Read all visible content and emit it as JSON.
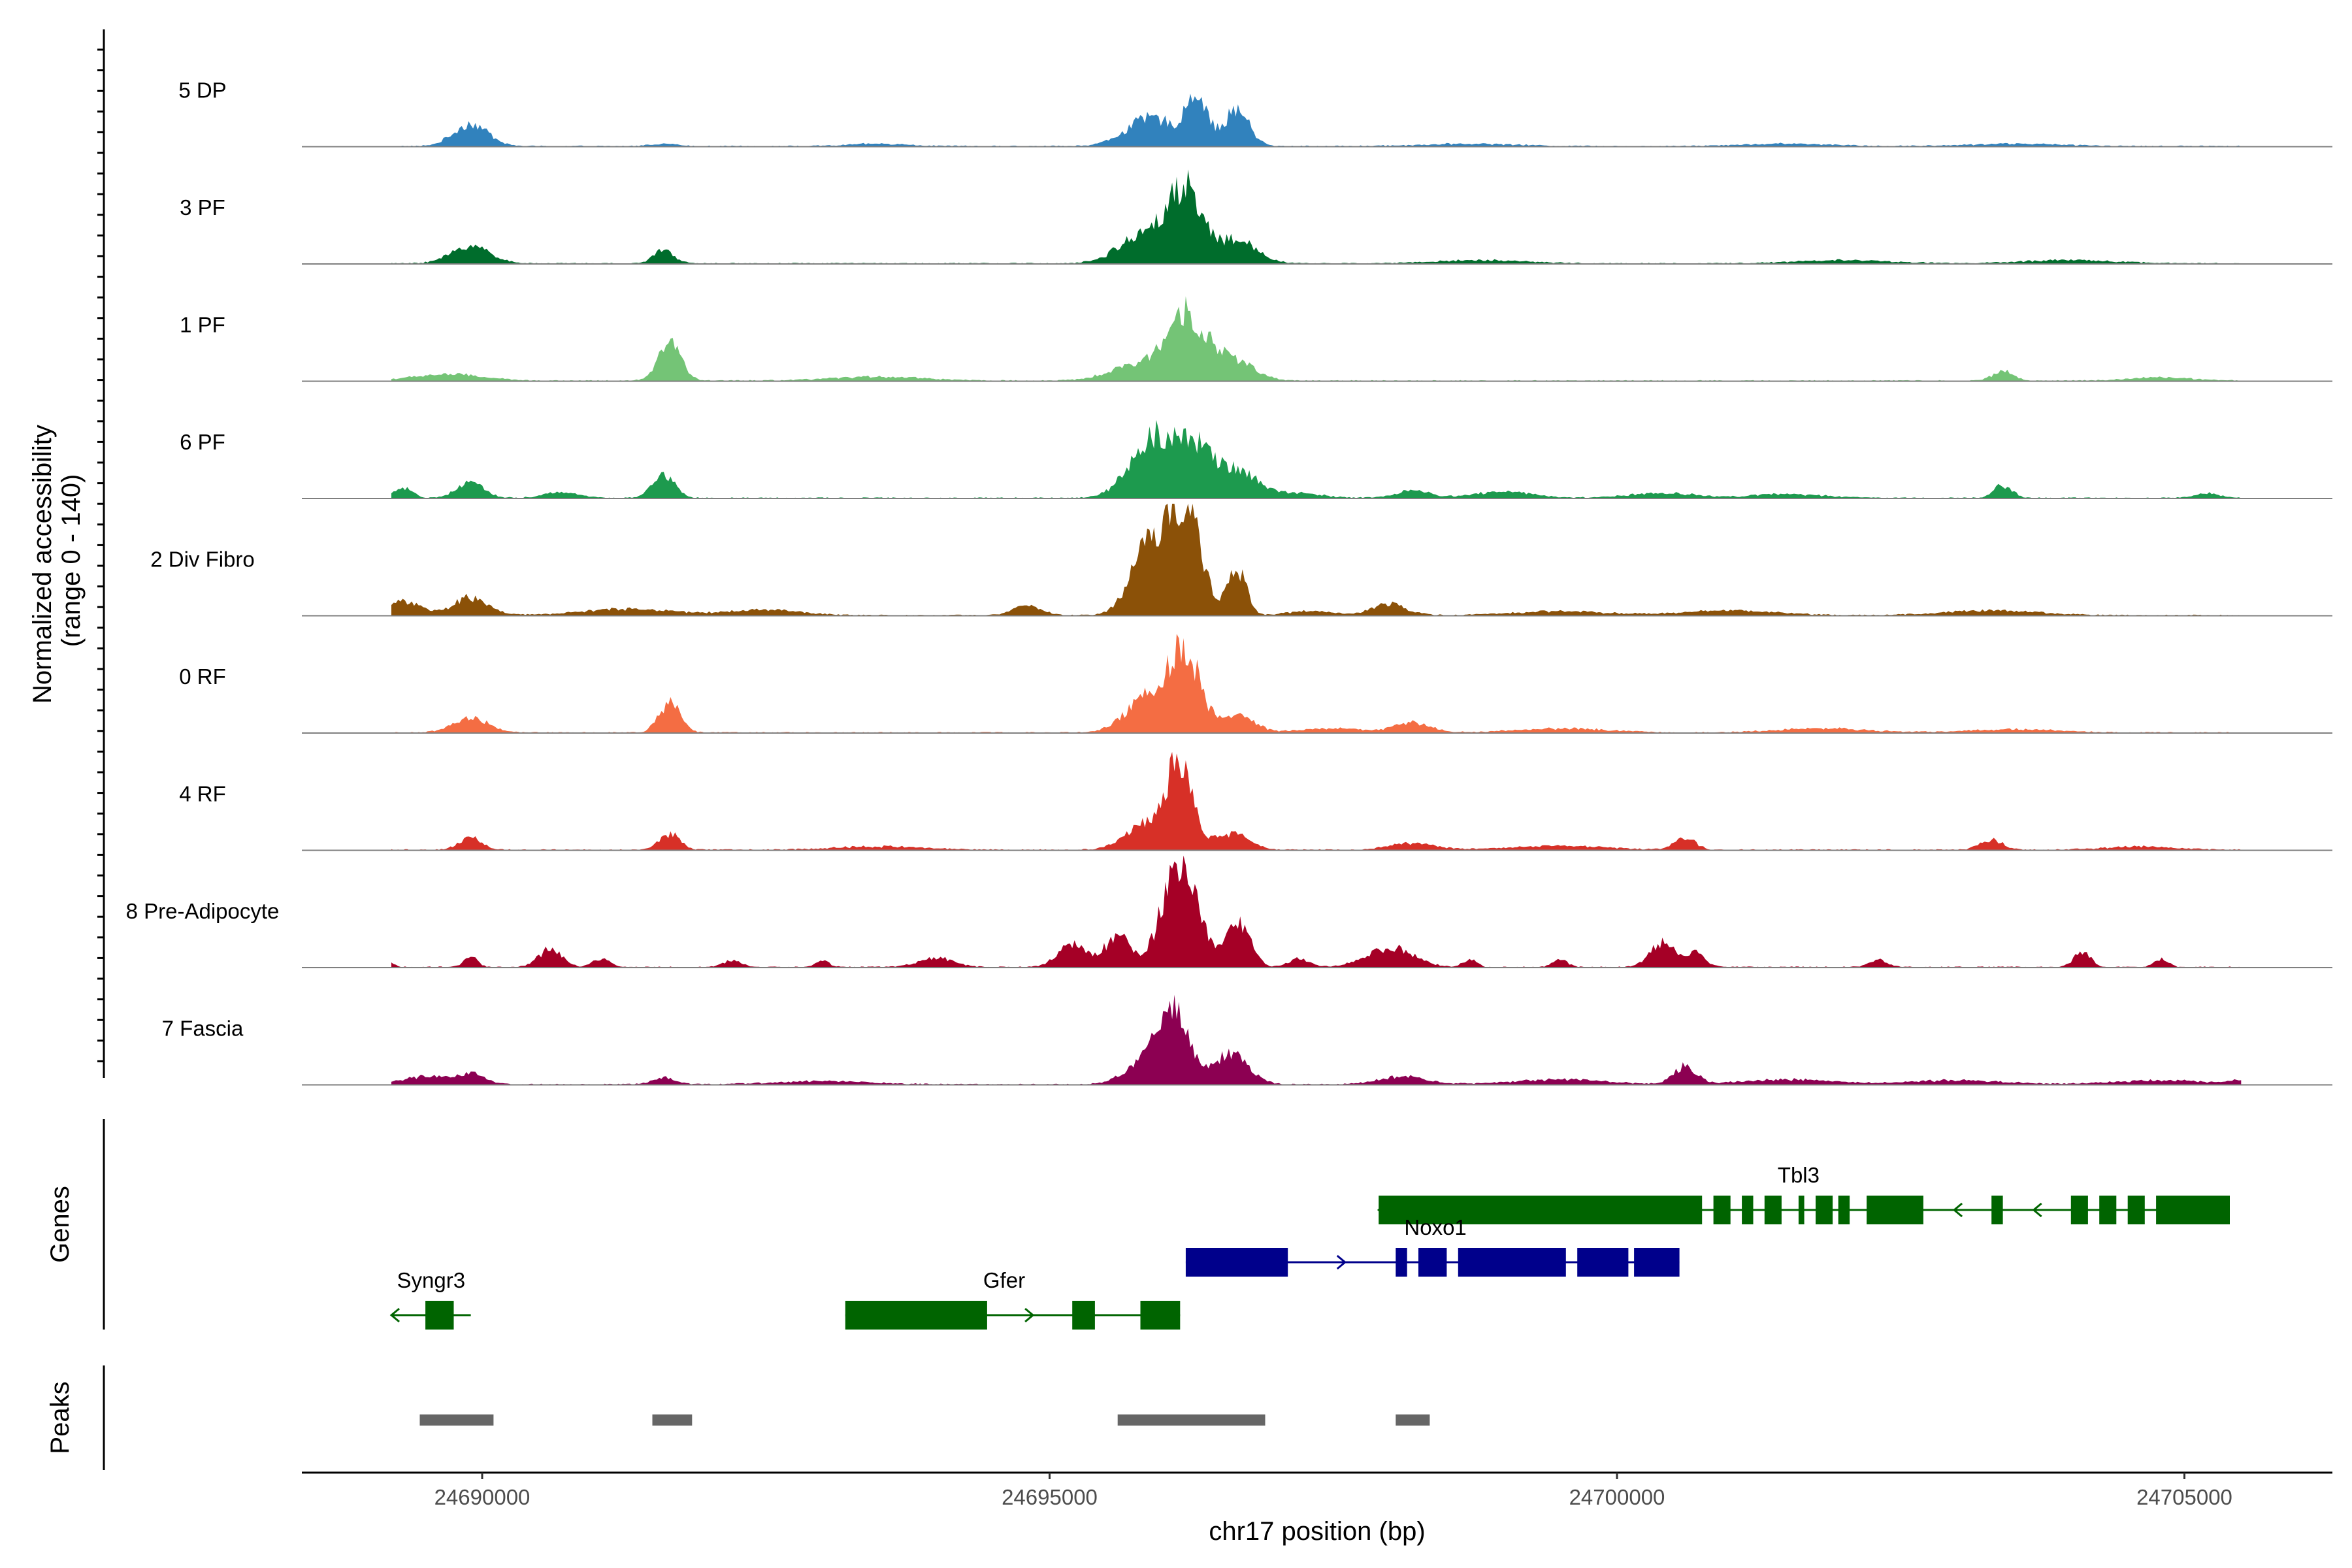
{
  "chart_data": {
    "type": "area",
    "y_axis_title": "Normalized accessibility\n(range 0 - 140)",
    "y_range": [
      0,
      140
    ],
    "x_axis_title": "chr17 position (bp)",
    "x_range": [
      24688300,
      24706300
    ],
    "x_ticks": [
      24690000,
      24695000,
      24700000,
      24705000
    ],
    "x_tick_labels": [
      "24690000",
      "24695000",
      "24700000",
      "24705000"
    ],
    "tracks": [
      {
        "name": "5 DP",
        "color": "#3182BD",
        "peaks": [
          [
            24689900,
            28,
            150
          ],
          [
            24691600,
            3,
            120
          ],
          [
            24693500,
            3,
            250
          ],
          [
            24695900,
            35,
            220
          ],
          [
            24696300,
            62,
            90
          ],
          [
            24696650,
            45,
            110
          ],
          [
            24698700,
            3,
            400
          ],
          [
            24701500,
            3,
            400
          ],
          [
            24703500,
            3,
            400
          ]
        ]
      },
      {
        "name": "3 PF",
        "color": "#006D2C",
        "peaks": [
          [
            24689900,
            22,
            170
          ],
          [
            24691600,
            16,
            90
          ],
          [
            24695850,
            38,
            220
          ],
          [
            24696200,
            85,
            150
          ],
          [
            24696650,
            28,
            180
          ],
          [
            24698800,
            4,
            400
          ],
          [
            24702000,
            4,
            400
          ],
          [
            24704000,
            4,
            400
          ]
        ]
      },
      {
        "name": "1 PF",
        "color": "#74C476",
        "peaks": [
          [
            24689700,
            8,
            300
          ],
          [
            24691650,
            48,
            100
          ],
          [
            24695800,
            20,
            250
          ],
          [
            24696200,
            80,
            160
          ],
          [
            24696600,
            28,
            180
          ],
          [
            24693500,
            5,
            400
          ],
          [
            24703400,
            12,
            90
          ],
          [
            24704800,
            4,
            300
          ]
        ]
      },
      {
        "name": "6 PF",
        "color": "#1D9A4E",
        "peaks": [
          [
            24689300,
            12,
            80
          ],
          [
            24689900,
            18,
            120
          ],
          [
            24690700,
            7,
            150
          ],
          [
            24691600,
            28,
            100
          ],
          [
            24695900,
            70,
            200
          ],
          [
            24696250,
            60,
            160
          ],
          [
            24696650,
            35,
            180
          ],
          [
            24697200,
            6,
            200
          ],
          [
            24698200,
            9,
            150
          ],
          [
            24699000,
            8,
            250
          ],
          [
            24700400,
            6,
            300
          ],
          [
            24701500,
            5,
            300
          ],
          [
            24703400,
            16,
            80
          ],
          [
            24705200,
            6,
            100
          ]
        ]
      },
      {
        "name": "2 Div Fibro",
        "color": "#8B5108",
        "peaks": [
          [
            24689300,
            18,
            150
          ],
          [
            24689900,
            22,
            150
          ],
          [
            24691300,
            8,
            400
          ],
          [
            24692500,
            7,
            300
          ],
          [
            24694800,
            12,
            120
          ],
          [
            24695900,
            90,
            170
          ],
          [
            24696200,
            120,
            140
          ],
          [
            24696650,
            60,
            80
          ],
          [
            24697300,
            5,
            200
          ],
          [
            24698000,
            14,
            150
          ],
          [
            24699500,
            5,
            400
          ],
          [
            24701000,
            6,
            400
          ],
          [
            24703300,
            6,
            400
          ]
        ]
      },
      {
        "name": "0 RF",
        "color": "#F46D43",
        "peaks": [
          [
            24689900,
            18,
            150
          ],
          [
            24691650,
            38,
            90
          ],
          [
            24695900,
            50,
            200
          ],
          [
            24696200,
            90,
            130
          ],
          [
            24696650,
            20,
            150
          ],
          [
            24697500,
            5,
            300
          ],
          [
            24698200,
            12,
            150
          ],
          [
            24699500,
            5,
            400
          ],
          [
            24701800,
            5,
            400
          ],
          [
            24703500,
            4,
            400
          ]
        ]
      },
      {
        "name": "4 RF",
        "color": "#D73027",
        "peaks": [
          [
            24689900,
            15,
            100
          ],
          [
            24691650,
            20,
            90
          ],
          [
            24693500,
            4,
            400
          ],
          [
            24695900,
            35,
            200
          ],
          [
            24696150,
            95,
            110
          ],
          [
            24696600,
            20,
            150
          ],
          [
            24698200,
            8,
            200
          ],
          [
            24699500,
            5,
            400
          ],
          [
            24700600,
            15,
            90
          ],
          [
            24703300,
            12,
            100
          ],
          [
            24704600,
            4,
            300
          ]
        ]
      },
      {
        "name": "8 Pre-Adipocyte",
        "color": "#A50026",
        "peaks": [
          [
            24689150,
            10,
            50
          ],
          [
            24689900,
            12,
            60
          ],
          [
            24690600,
            22,
            100
          ],
          [
            24691050,
            10,
            80
          ],
          [
            24692200,
            8,
            80
          ],
          [
            24693000,
            8,
            60
          ],
          [
            24694000,
            12,
            150
          ],
          [
            24695200,
            30,
            120
          ],
          [
            24695600,
            40,
            110
          ],
          [
            24696150,
            135,
            150
          ],
          [
            24696650,
            60,
            110
          ],
          [
            24697200,
            10,
            90
          ],
          [
            24698000,
            25,
            200
          ],
          [
            24698700,
            10,
            60
          ],
          [
            24699500,
            10,
            60
          ],
          [
            24700400,
            30,
            110
          ],
          [
            24700700,
            16,
            80
          ],
          [
            24702300,
            9,
            80
          ],
          [
            24704100,
            20,
            70
          ],
          [
            24704800,
            10,
            60
          ]
        ]
      },
      {
        "name": "7 Fascia",
        "color": "#8C0052",
        "peaks": [
          [
            24689500,
            10,
            200
          ],
          [
            24689900,
            12,
            120
          ],
          [
            24691600,
            8,
            100
          ],
          [
            24693000,
            4,
            400
          ],
          [
            24695900,
            30,
            200
          ],
          [
            24696100,
            80,
            130
          ],
          [
            24696600,
            40,
            150
          ],
          [
            24698100,
            10,
            200
          ],
          [
            24699500,
            6,
            400
          ],
          [
            24700600,
            22,
            100
          ],
          [
            24701500,
            6,
            400
          ],
          [
            24703000,
            5,
            400
          ],
          [
            24704800,
            5,
            400
          ],
          [
            24705500,
            4,
            100
          ]
        ]
      }
    ],
    "genes_track_title": "Genes",
    "genes": [
      {
        "name": "Tbl3",
        "strand": "-",
        "color": "#006400",
        "row": 1,
        "label_x": 24701600,
        "start": 24697900,
        "end": 24705400,
        "exons": [
          [
            24697900,
            24700750
          ],
          [
            24700850,
            24701000
          ],
          [
            24701100,
            24701200
          ],
          [
            24701300,
            24701450
          ],
          [
            24701600,
            24701650
          ],
          [
            24701750,
            24701900
          ],
          [
            24701950,
            24702050
          ],
          [
            24702200,
            24702700
          ],
          [
            24703300,
            24703400
          ],
          [
            24704000,
            24704150
          ],
          [
            24704250,
            24704400
          ],
          [
            24704500,
            24704650
          ],
          [
            24704750,
            24705400
          ]
        ]
      },
      {
        "name": "Noxo1",
        "strand": "+",
        "color": "#00008B",
        "row": 2,
        "label_x": 24698400,
        "start": 24696200,
        "end": 24700550,
        "exons": [
          [
            24696200,
            24697100
          ],
          [
            24698050,
            24698150
          ],
          [
            24698250,
            24698500
          ],
          [
            24698600,
            24699550
          ],
          [
            24699650,
            24700100
          ],
          [
            24700150,
            24700550
          ]
        ]
      },
      {
        "name": "Gfer",
        "strand": "+",
        "color": "#006400",
        "row": 3,
        "label_x": 24694600,
        "start": 24693200,
        "end": 24696150,
        "exons": [
          [
            24693200,
            24694450
          ],
          [
            24695200,
            24695400
          ],
          [
            24695800,
            24696150
          ]
        ]
      },
      {
        "name": "Syngr3",
        "strand": "-",
        "color": "#006400",
        "row": 3,
        "label_x": 24689550,
        "start": 24689200,
        "end": 24689900,
        "exons": [
          [
            24689500,
            24689750
          ]
        ]
      }
    ],
    "peaks_track_title": "Peaks",
    "peak_regions": [
      [
        24689450,
        24690100
      ],
      [
        24691500,
        24691850
      ],
      [
        24695600,
        24696900
      ],
      [
        24698050,
        24698350
      ]
    ]
  }
}
